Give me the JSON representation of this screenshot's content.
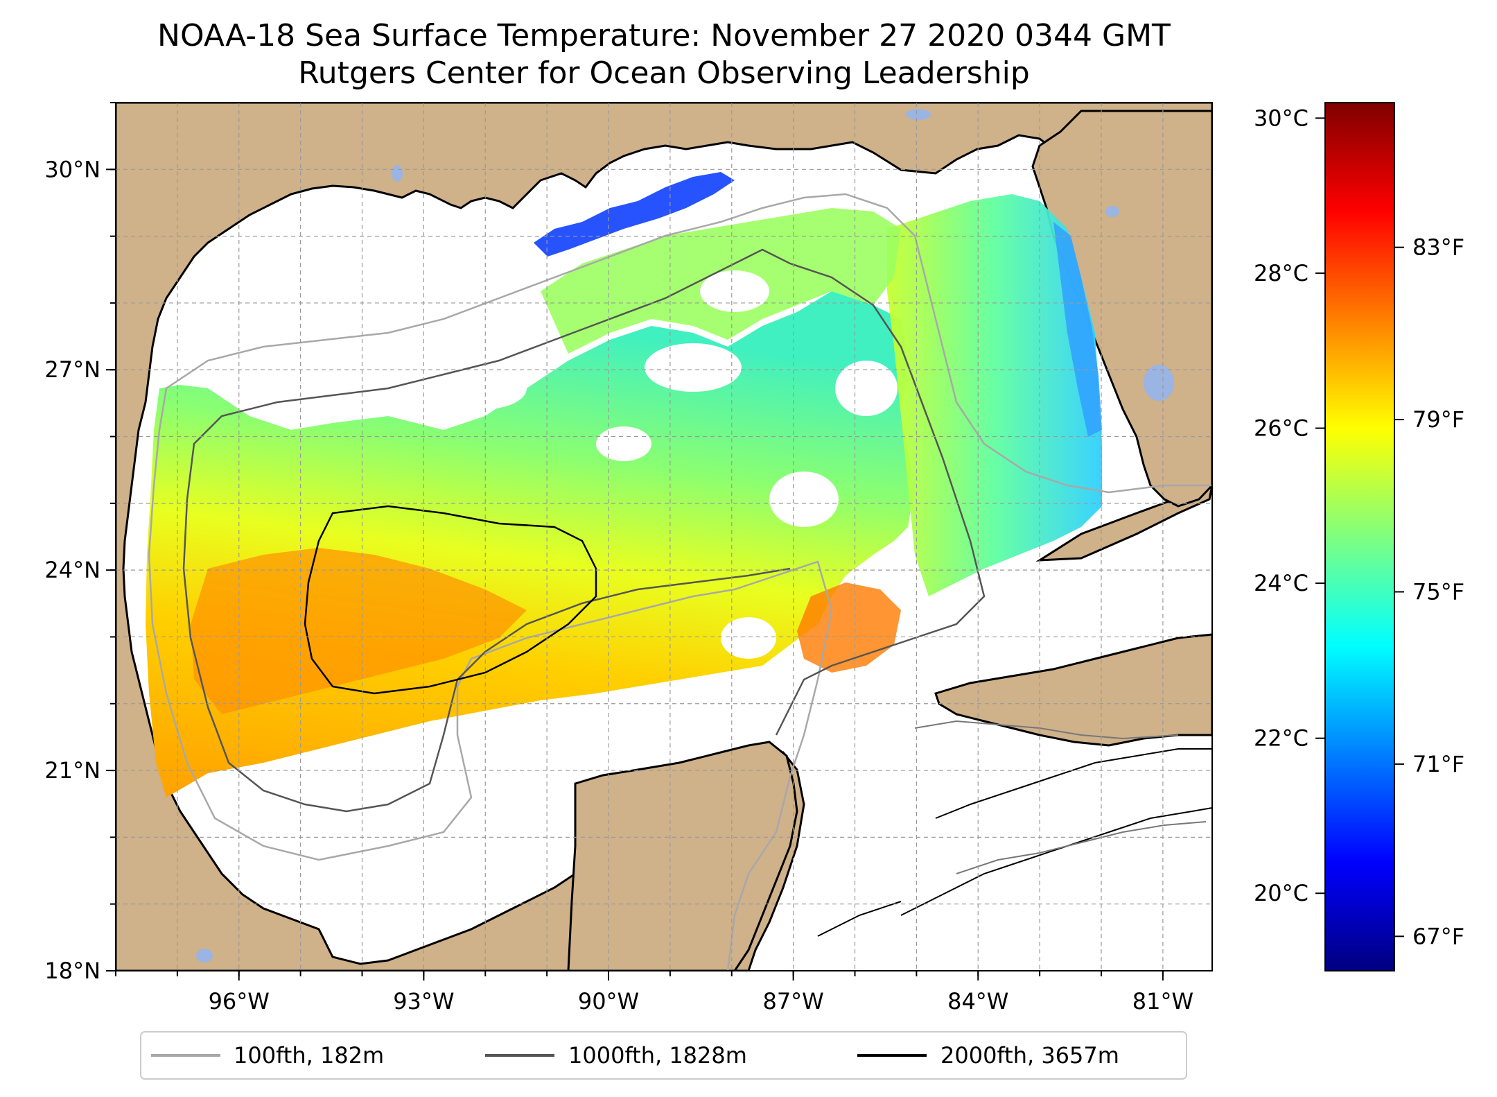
{
  "title": {
    "line1": "NOAA-18 Sea Surface Temperature: November 27 2020 0344 GMT",
    "line2": "Rutgers Center for Ocean Observing Leadership"
  },
  "map": {
    "lon_range": [
      -98,
      -80.2
    ],
    "lat_range": [
      18,
      31
    ],
    "lat_ticks": [
      {
        "value": 30,
        "label": "30°N"
      },
      {
        "value": 27,
        "label": "27°N"
      },
      {
        "value": 24,
        "label": "24°N"
      },
      {
        "value": 21,
        "label": "21°N"
      },
      {
        "value": 18,
        "label": "18°N"
      }
    ],
    "lon_ticks": [
      {
        "value": -96,
        "label": "96°W"
      },
      {
        "value": -93,
        "label": "93°W"
      },
      {
        "value": -90,
        "label": "90°W"
      },
      {
        "value": -87,
        "label": "87°W"
      },
      {
        "value": -84,
        "label": "84°W"
      },
      {
        "value": -81,
        "label": "81°W"
      }
    ],
    "colors": {
      "land": "#cfb18a",
      "coastline": "#000000",
      "lakes": "#9ab4e3",
      "grid": "#9a9a9a"
    }
  },
  "colorbar": {
    "units_c": "°C",
    "units_f": "°F",
    "range_c": [
      19.0,
      30.2
    ],
    "celsius_ticks": [
      {
        "value": 30,
        "label": "30°C"
      },
      {
        "value": 28,
        "label": "28°C"
      },
      {
        "value": 26,
        "label": "26°C"
      },
      {
        "value": 24,
        "label": "24°C"
      },
      {
        "value": 22,
        "label": "22°C"
      },
      {
        "value": 20,
        "label": "20°C"
      }
    ],
    "fahrenheit_ticks": [
      {
        "value": 83,
        "label": "83°F"
      },
      {
        "value": 79,
        "label": "79°F"
      },
      {
        "value": 75,
        "label": "75°F"
      },
      {
        "value": 71,
        "label": "71°F"
      },
      {
        "value": 67,
        "label": "67°F"
      }
    ],
    "colormap": "jet"
  },
  "legend": {
    "entries": [
      {
        "label": "100fth, 182m",
        "color": "#a8a8a8"
      },
      {
        "label": "1000fth, 1828m",
        "color": "#555555"
      },
      {
        "label": "2000fth, 3657m",
        "color": "#000000"
      }
    ]
  }
}
